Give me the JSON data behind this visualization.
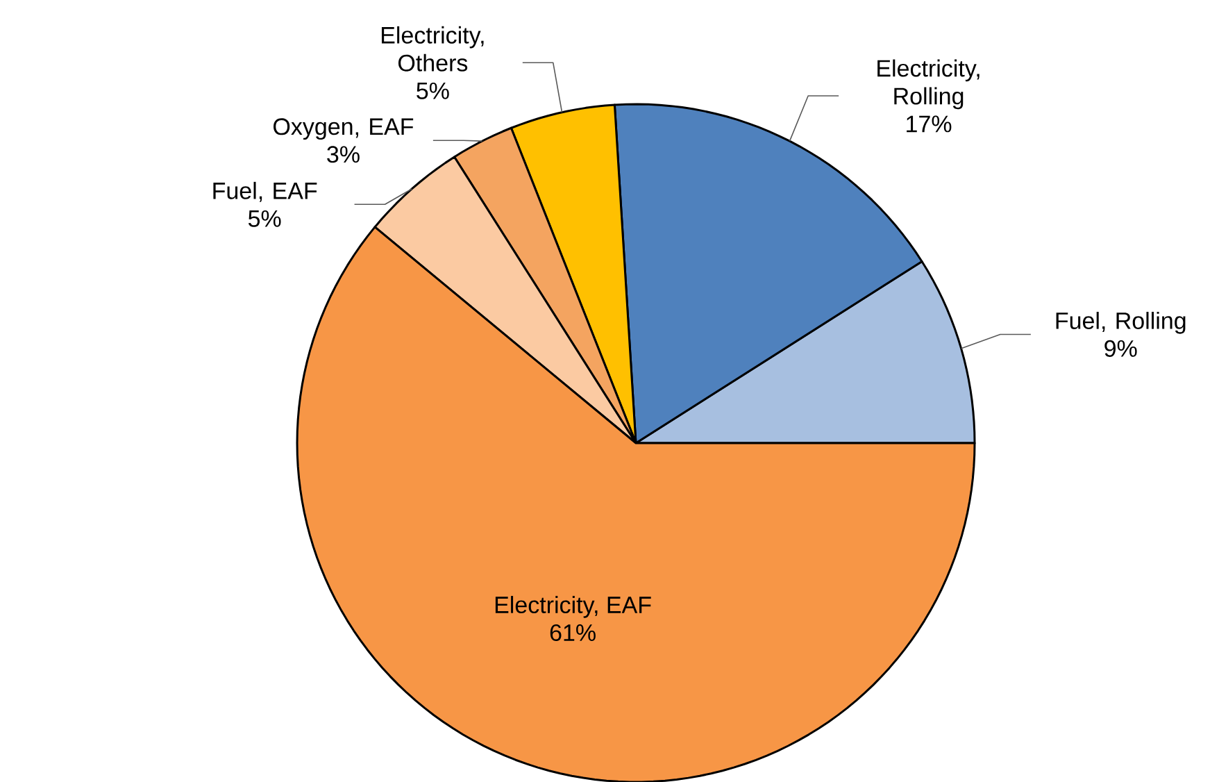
{
  "chart_data": {
    "type": "pie",
    "categories": [
      "Fuel, Rolling",
      "Electricity, Rolling",
      "Electricity, Others",
      "Oxygen, EAF",
      "Fuel, EAF",
      "Electricity, EAF"
    ],
    "values": [
      9,
      17,
      5,
      3,
      5,
      61
    ],
    "value_labels": [
      "9%",
      "17%",
      "5%",
      "3%",
      "5%",
      "61%"
    ],
    "colors": [
      "#a7bfe0",
      "#4f81bd",
      "#ffc000",
      "#f4a460",
      "#fbcaa2",
      "#f79646"
    ]
  }
}
